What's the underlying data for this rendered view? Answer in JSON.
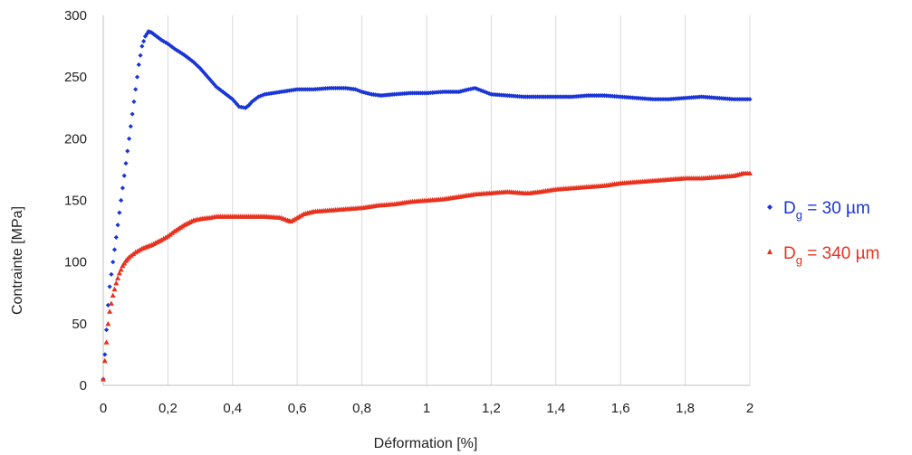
{
  "chart_data": {
    "type": "scatter",
    "title": "",
    "xlabel": "Déformation [%]",
    "ylabel": "Contrainte [MPa]",
    "xlim": [
      0,
      2
    ],
    "ylim": [
      0,
      300
    ],
    "x_ticks": [
      0,
      0.2,
      0.4,
      0.6,
      0.8,
      1,
      1.2,
      1.4,
      1.6,
      1.8,
      2
    ],
    "x_tick_labels": [
      "0",
      "0,2",
      "0,4",
      "0,6",
      "0,8",
      "1",
      "1,2",
      "1,4",
      "1,6",
      "1,8",
      "2"
    ],
    "y_ticks": [
      0,
      50,
      100,
      150,
      200,
      250,
      300
    ],
    "y_tick_labels": [
      "0",
      "50",
      "100",
      "150",
      "200",
      "250",
      "300"
    ],
    "grid": "vertical",
    "legend": "right",
    "series": [
      {
        "name": "Dg = 30 µm",
        "legend_main": "D",
        "legend_sub": "g",
        "legend_rest": " = 30 µm",
        "marker": "diamond",
        "color": "#1a35d6",
        "x": [
          0,
          0.005,
          0.01,
          0.015,
          0.02,
          0.03,
          0.04,
          0.05,
          0.06,
          0.07,
          0.08,
          0.09,
          0.1,
          0.11,
          0.12,
          0.13,
          0.14,
          0.15,
          0.16,
          0.17,
          0.18,
          0.2,
          0.22,
          0.25,
          0.28,
          0.3,
          0.33,
          0.35,
          0.37,
          0.4,
          0.42,
          0.44,
          0.45,
          0.46,
          0.48,
          0.5,
          0.55,
          0.6,
          0.65,
          0.7,
          0.75,
          0.78,
          0.8,
          0.83,
          0.86,
          0.9,
          0.95,
          1.0,
          1.05,
          1.1,
          1.13,
          1.15,
          1.18,
          1.2,
          1.25,
          1.3,
          1.35,
          1.4,
          1.45,
          1.5,
          1.55,
          1.6,
          1.65,
          1.7,
          1.75,
          1.8,
          1.85,
          1.9,
          1.95,
          2.0
        ],
        "y": [
          5,
          25,
          45,
          65,
          80,
          100,
          120,
          140,
          160,
          180,
          200,
          220,
          240,
          260,
          275,
          283,
          287,
          286,
          284,
          282,
          280,
          277,
          273,
          268,
          262,
          257,
          248,
          242,
          238,
          232,
          226,
          225,
          227,
          230,
          234,
          236,
          238,
          240,
          240,
          241,
          241,
          240,
          238,
          236,
          235,
          236,
          237,
          237,
          238,
          238,
          240,
          241,
          238,
          236,
          235,
          234,
          234,
          234,
          234,
          235,
          235,
          234,
          233,
          232,
          232,
          233,
          234,
          233,
          232,
          232
        ]
      },
      {
        "name": "Dg = 340 µm",
        "legend_main": "D",
        "legend_sub": "g",
        "legend_rest": " = 340 µm",
        "marker": "triangle",
        "color": "#e8321e",
        "x": [
          0,
          0.005,
          0.01,
          0.015,
          0.02,
          0.03,
          0.04,
          0.05,
          0.06,
          0.07,
          0.08,
          0.1,
          0.12,
          0.15,
          0.18,
          0.2,
          0.22,
          0.25,
          0.28,
          0.3,
          0.33,
          0.35,
          0.4,
          0.45,
          0.5,
          0.55,
          0.57,
          0.58,
          0.6,
          0.62,
          0.65,
          0.7,
          0.75,
          0.8,
          0.85,
          0.9,
          0.95,
          1.0,
          1.05,
          1.1,
          1.15,
          1.2,
          1.25,
          1.3,
          1.32,
          1.35,
          1.4,
          1.45,
          1.5,
          1.55,
          1.6,
          1.65,
          1.7,
          1.75,
          1.8,
          1.85,
          1.9,
          1.95,
          1.98,
          2.0
        ],
        "y": [
          5,
          20,
          35,
          50,
          60,
          73,
          83,
          91,
          97,
          101,
          104,
          108,
          111,
          114,
          118,
          121,
          125,
          130,
          134,
          135,
          136,
          137,
          137,
          137,
          137,
          136,
          134,
          133,
          136,
          139,
          141,
          142,
          143,
          144,
          146,
          147,
          149,
          150,
          151,
          153,
          155,
          156,
          157,
          156,
          156,
          157,
          159,
          160,
          161,
          162,
          164,
          165,
          166,
          167,
          168,
          168,
          169,
          170,
          172,
          172
        ]
      }
    ]
  }
}
